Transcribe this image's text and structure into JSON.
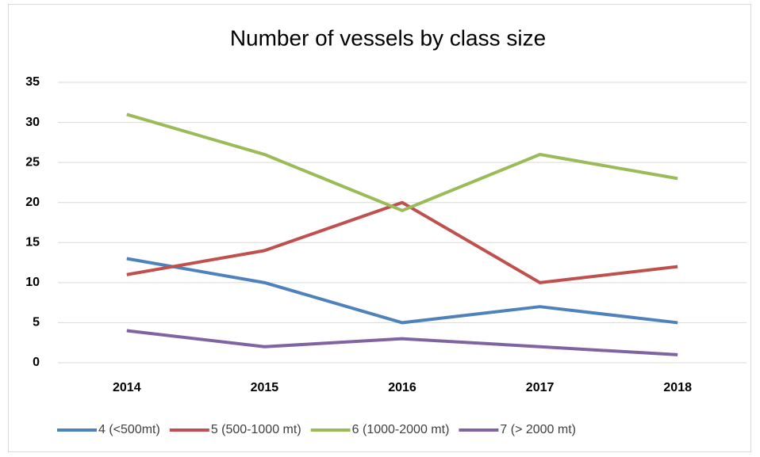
{
  "chart_data": {
    "type": "line",
    "title": "Number of vessels by class size",
    "categories": [
      "2014",
      "2015",
      "2016",
      "2017",
      "2018"
    ],
    "series": [
      {
        "name": "4 (<500mt)",
        "color": "#4f81bd",
        "values": [
          13,
          10,
          5,
          7,
          5
        ]
      },
      {
        "name": "5 (500-1000 mt)",
        "color": "#c0504d",
        "values": [
          11,
          14,
          20,
          10,
          12
        ]
      },
      {
        "name": "6 (1000-2000 mt)",
        "color": "#9bbb59",
        "values": [
          31,
          26,
          19,
          26,
          23
        ]
      },
      {
        "name": "7 (> 2000 mt)",
        "color": "#8064a2",
        "values": [
          4,
          2,
          3,
          2,
          1
        ]
      }
    ],
    "ylim": [
      0,
      35
    ],
    "yticks": [
      0,
      5,
      10,
      15,
      20,
      25,
      30,
      35
    ],
    "grid": true,
    "legend": "bottom"
  }
}
